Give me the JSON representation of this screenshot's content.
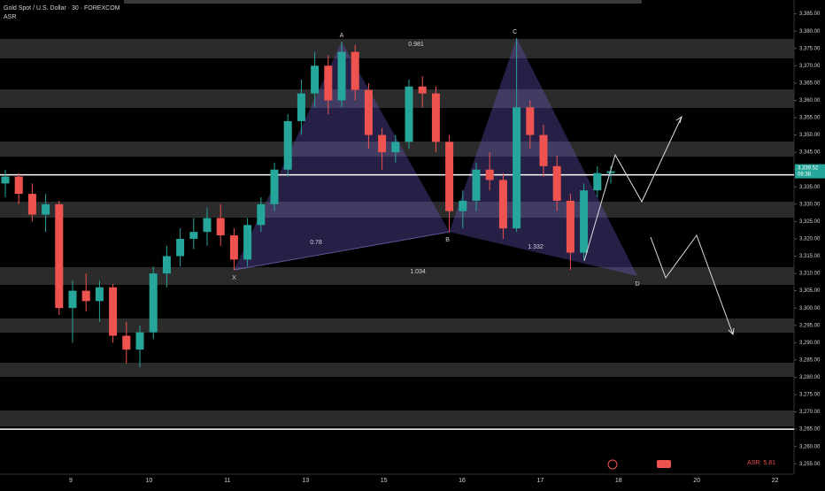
{
  "chart_data": {
    "type": "candlestick",
    "title": "Gold Spot / U.S. Dollar · 30 · FOREXCOM",
    "indicator": "ASR",
    "up_color": "#26a69a",
    "down_color": "#ef5350",
    "categories": [
      "9",
      "10",
      "11",
      "13",
      "15",
      "16",
      "17",
      "18",
      "20",
      "22"
    ],
    "ylim": [
      3252,
      3389
    ],
    "yticks": [
      {
        "value": 3255,
        "label": "3,255.00"
      },
      {
        "value": 3260,
        "label": "3,260.00"
      },
      {
        "value": 3265,
        "label": "3,265.00"
      },
      {
        "value": 3270,
        "label": "3,270.00"
      },
      {
        "value": 3275,
        "label": "3,275.00"
      },
      {
        "value": 3280,
        "label": "3,280.00"
      },
      {
        "value": 3285,
        "label": "3,285.00"
      },
      {
        "value": 3290,
        "label": "3,290.00"
      },
      {
        "value": 3295,
        "label": "3,295.00"
      },
      {
        "value": 3300,
        "label": "3,300.00"
      },
      {
        "value": 3305,
        "label": "3,305.00"
      },
      {
        "value": 3310,
        "label": "3,310.00"
      },
      {
        "value": 3315,
        "label": "3,315.00"
      },
      {
        "value": 3320,
        "label": "3,320.00"
      },
      {
        "value": 3325,
        "label": "3,325.00"
      },
      {
        "value": 3330,
        "label": "3,330.00"
      },
      {
        "value": 3335,
        "label": "3,335.00"
      },
      {
        "value": 3340,
        "label": "3,340.00"
      },
      {
        "value": 3345,
        "label": "3,345.00"
      },
      {
        "value": 3350,
        "label": "3,350.00"
      },
      {
        "value": 3355,
        "label": "3,355.00"
      },
      {
        "value": 3360,
        "label": "3,360.00"
      },
      {
        "value": 3365,
        "label": "3,365.00"
      },
      {
        "value": 3370,
        "label": "3,370.00"
      },
      {
        "value": 3375,
        "label": "3,375.00"
      },
      {
        "value": 3380,
        "label": "3,380.00"
      },
      {
        "value": 3385,
        "label": "3,385.00"
      }
    ],
    "candles": [
      [
        3336,
        3340,
        3332,
        3338
      ],
      [
        3338,
        3339,
        3330,
        3333
      ],
      [
        3333,
        3336,
        3325,
        3327
      ],
      [
        3327,
        3333,
        3322,
        3330
      ],
      [
        3330,
        3331,
        3298,
        3300
      ],
      [
        3300,
        3308,
        3290,
        3305
      ],
      [
        3305,
        3310,
        3299,
        3302
      ],
      [
        3302,
        3308,
        3296,
        3306
      ],
      [
        3306,
        3307,
        3290,
        3292
      ],
      [
        3292,
        3296,
        3284,
        3288
      ],
      [
        3288,
        3295,
        3283,
        3293
      ],
      [
        3293,
        3312,
        3291,
        3310
      ],
      [
        3310,
        3318,
        3306,
        3315
      ],
      [
        3315,
        3323,
        3312,
        3320
      ],
      [
        3320,
        3326,
        3317,
        3322
      ],
      [
        3322,
        3329,
        3318,
        3326
      ],
      [
        3326,
        3330,
        3318,
        3321
      ],
      [
        3321,
        3323,
        3311,
        3314
      ],
      [
        3314,
        3326,
        3312,
        3324
      ],
      [
        3324,
        3332,
        3322,
        3330
      ],
      [
        3330,
        3342,
        3328,
        3340
      ],
      [
        3340,
        3356,
        3338,
        3354
      ],
      [
        3354,
        3366,
        3350,
        3362
      ],
      [
        3362,
        3374,
        3358,
        3370
      ],
      [
        3370,
        3373,
        3356,
        3360
      ],
      [
        3360,
        3377,
        3358,
        3374
      ],
      [
        3374,
        3376,
        3360,
        3363
      ],
      [
        3363,
        3365,
        3346,
        3350
      ],
      [
        3350,
        3352,
        3340,
        3345
      ],
      [
        3345,
        3350,
        3342,
        3348
      ],
      [
        3348,
        3366,
        3346,
        3364
      ],
      [
        3364,
        3367,
        3358,
        3362
      ],
      [
        3362,
        3364,
        3345,
        3348
      ],
      [
        3348,
        3350,
        3322,
        3328
      ],
      [
        3328,
        3334,
        3323,
        3331
      ],
      [
        3331,
        3342,
        3328,
        3340
      ],
      [
        3340,
        3345,
        3334,
        3337
      ],
      [
        3337,
        3339,
        3320,
        3323
      ],
      [
        3323,
        3378,
        3322,
        3358
      ],
      [
        3358,
        3360,
        3346,
        3350
      ],
      [
        3350,
        3353,
        3338,
        3341
      ],
      [
        3341,
        3344,
        3328,
        3331
      ],
      [
        3331,
        3333,
        3311,
        3316
      ],
      [
        3316,
        3336,
        3314,
        3334
      ],
      [
        3334,
        3341,
        3332,
        3339
      ],
      [
        3339,
        3341,
        3336,
        3339.52
      ]
    ],
    "levels": [
      3338.5,
      3265
    ],
    "last_price_label": "3,339.52",
    "countdown": "06:38",
    "pattern_points": [
      "X",
      "A",
      "B",
      "C",
      "D"
    ],
    "ratios": [
      "0.981",
      "0.78",
      "1.034",
      "1.332"
    ],
    "asr_label": "ASR: 5.81"
  }
}
